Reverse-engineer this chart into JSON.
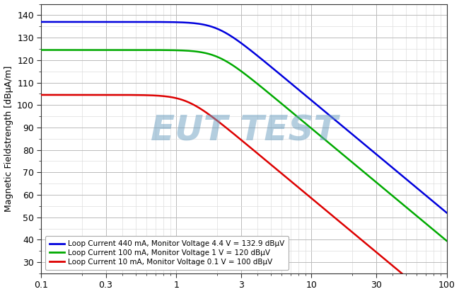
{
  "ylabel": "Magnetic Fieldstrength [dBµA/m]",
  "xlim": [
    0.1,
    100
  ],
  "ylim": [
    25,
    145
  ],
  "yticks": [
    30,
    40,
    50,
    60,
    70,
    80,
    90,
    100,
    110,
    120,
    130,
    140
  ],
  "xticks": [
    0.1,
    0.3,
    1,
    3,
    10,
    30,
    100
  ],
  "xtick_labels": [
    "0.1",
    "0.3",
    "1",
    "3",
    "10",
    "30",
    "100"
  ],
  "background_color": "#ffffff",
  "grid_major_color": "#bbbbbb",
  "grid_minor_color": "#dddddd",
  "watermark_text": "EUT TEST",
  "watermark_color": "#6b9ec0",
  "watermark_alpha": 0.5,
  "legend": [
    {
      "label": "Loop Current 440 mA, Monitor Voltage 4.4 V = 132.9 dBµV",
      "color": "#0000dd"
    },
    {
      "label": "Loop Current 100 mA, Monitor Voltage 1 V = 120 dBµV",
      "color": "#00aa00"
    },
    {
      "label": "Loop Current 10 mA, Monitor Voltage 0.1 V = 100 dBµV",
      "color": "#dd0000"
    }
  ],
  "curves": [
    {
      "color": "#0000dd",
      "base_val": 137.0,
      "fc": 2.0,
      "order": 2.5
    },
    {
      "color": "#00aa00",
      "base_val": 124.5,
      "fc": 2.0,
      "order": 2.5
    },
    {
      "color": "#dd0000",
      "base_val": 104.5,
      "fc": 1.2,
      "order": 2.5
    }
  ]
}
